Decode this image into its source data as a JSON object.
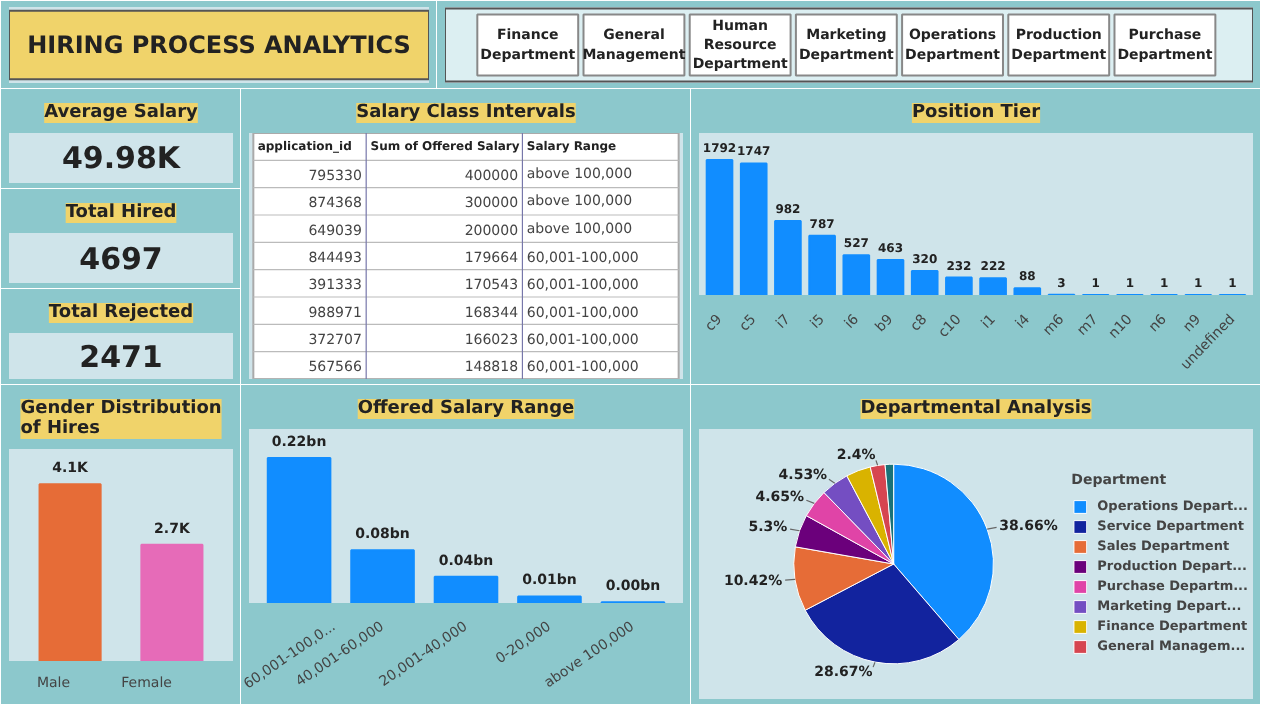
{
  "chart_data": [
    {
      "type": "other",
      "title": "HIRING PROCESS ANALYTICS"
    },
    {
      "type": "other",
      "annotations": [
        "Finance Department",
        "General Management",
        "Human Resource Department",
        "Marketing Department",
        "Operations Department",
        "Production Department",
        "Purchase Department"
      ]
    },
    {
      "type": "other",
      "title": "Average Salary",
      "annotations": [
        "49.98K"
      ]
    },
    {
      "type": "other",
      "title": "Total Hired",
      "annotations": [
        "4697"
      ]
    },
    {
      "type": "other",
      "title": "Total Rejected",
      "annotations": [
        "2471"
      ]
    },
    {
      "type": "other",
      "title": "Salary Class Intervals",
      "annotations": [
        "application_id",
        "Sum of Offered Salary",
        "Salary Range",
        "795330",
        "400000",
        "above 100,000",
        "874368",
        "300000",
        "above 100,000",
        "649039",
        "200000",
        "above 100,000",
        "844493",
        "179664",
        "60,001-100,000",
        "391333",
        "170543",
        "60,001-100,000",
        "988971",
        "168344",
        "60,001-100,000",
        "372707",
        "166023",
        "60,001-100,000",
        "567566",
        "148818",
        "60,001-100,000"
      ]
    },
    {
      "type": "bar",
      "title": "Position Tier",
      "categories": [
        "c9",
        "c5",
        "i7",
        "i5",
        "i6",
        "b9",
        "c8",
        "c10",
        "i1",
        "i4",
        "m6",
        "m7",
        "n10",
        "n6",
        "n9",
        "undefined"
      ],
      "values": [
        1792,
        1747,
        982,
        787,
        527,
        463,
        320,
        232,
        222,
        88,
        3,
        1,
        1,
        1,
        1,
        1
      ],
      "color": "#118dff",
      "data_labels": true
    },
    {
      "type": "bar",
      "title": "Gender Distribution of Hires",
      "categories": [
        "Male",
        "Female"
      ],
      "values": [
        4100,
        2700
      ],
      "colors": [
        "#e66c37",
        "#e66bb8"
      ],
      "value_labels": [
        "4.1K",
        "2.7K"
      ]
    },
    {
      "type": "bar",
      "title": "Offered Salary Range",
      "categories": [
        "60,001-100,0...",
        "40,001-60,000",
        "20,001-40,000",
        "0-20,000",
        "above 100,000"
      ],
      "values": [
        0.22,
        0.08,
        0.04,
        0.01,
        0.001
      ],
      "color": "#118dff",
      "value_labels": [
        "0.22bn",
        "0.08bn",
        "0.04bn",
        "0.01bn",
        "0.00bn"
      ]
    },
    {
      "type": "pie",
      "title": "Departmental Analysis",
      "legend_title": "Department",
      "legend": "right",
      "categories": [
        "Operations Depart...",
        "Service Department",
        "Sales Department",
        "Production Depart...",
        "Purchase Departm...",
        "Marketing Depart...",
        "Finance Department",
        "General Managem...",
        null
      ],
      "values": [
        38.66,
        28.67,
        10.42,
        5.3,
        4.65,
        4.53,
        4.0,
        2.4,
        1.37
      ],
      "colors": [
        "#118dff",
        "#12239e",
        "#e66c37",
        "#6b007b",
        "#e044a7",
        "#744ec2",
        "#d9b300",
        "#d64550",
        "#197278"
      ],
      "value_labels": [
        "38.66%",
        "28.67%",
        "10.42%",
        "5.3%",
        "4.65%",
        "4.53%",
        null,
        "2.4%",
        null
      ]
    }
  ]
}
